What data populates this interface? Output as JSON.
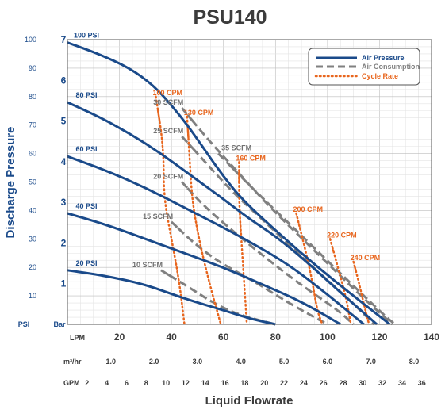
{
  "chart_data": {
    "type": "line",
    "title": "PSU140",
    "xlabel": "Liquid Flowrate",
    "ylabel": "Discharge Pressure",
    "x_unit": "LPM",
    "y_unit_psi": "PSI",
    "y_unit_bar": "Bar",
    "xlim": [
      0,
      140
    ],
    "ylim_psi": [
      0,
      100
    ],
    "ylim_bar": [
      0,
      7
    ],
    "grid": true,
    "legend_position": "top-right",
    "x_ticks": [
      "20",
      "40",
      "60",
      "80",
      "100",
      "120",
      "140"
    ],
    "y_ticks_psi": [
      "100",
      "90",
      "80",
      "70",
      "60",
      "50",
      "40",
      "30",
      "20",
      "10"
    ],
    "y_ticks_bar": [
      "7",
      "6",
      "5",
      "4",
      "3",
      "2",
      "1"
    ],
    "secondary_x_axes": [
      {
        "unit": "m³/hr",
        "ticks": [
          {
            "label": "1.0",
            "lpm": 16.7
          },
          {
            "label": "2.0",
            "lpm": 33.3
          },
          {
            "label": "3.0",
            "lpm": 50.0
          },
          {
            "label": "4.0",
            "lpm": 66.7
          },
          {
            "label": "5.0",
            "lpm": 83.3
          },
          {
            "label": "6.0",
            "lpm": 100.0
          },
          {
            "label": "7.0",
            "lpm": 116.7
          },
          {
            "label": "8.0",
            "lpm": 133.3
          }
        ]
      },
      {
        "unit": "GPM",
        "ticks": [
          {
            "label": "2",
            "lpm": 7.57
          },
          {
            "label": "4",
            "lpm": 15.14
          },
          {
            "label": "6",
            "lpm": 22.71
          },
          {
            "label": "8",
            "lpm": 30.28
          },
          {
            "label": "10",
            "lpm": 37.85
          },
          {
            "label": "12",
            "lpm": 45.42
          },
          {
            "label": "14",
            "lpm": 52.99
          },
          {
            "label": "16",
            "lpm": 60.57
          },
          {
            "label": "18",
            "lpm": 68.14
          },
          {
            "label": "20",
            "lpm": 75.71
          },
          {
            "label": "22",
            "lpm": 83.28
          },
          {
            "label": "24",
            "lpm": 90.85
          },
          {
            "label": "26",
            "lpm": 98.42
          },
          {
            "label": "28",
            "lpm": 105.99
          },
          {
            "label": "30",
            "lpm": 113.56
          },
          {
            "label": "32",
            "lpm": 121.13
          },
          {
            "label": "34",
            "lpm": 128.7
          },
          {
            "label": "36",
            "lpm": 136.27
          }
        ]
      }
    ],
    "legend": [
      {
        "label": "Air Pressure",
        "color": "#1a4a8a",
        "style": "solid"
      },
      {
        "label": "Air Consumption",
        "color": "#808080",
        "style": "dashed"
      },
      {
        "label": "Cycle Rate",
        "color": "#e8661e",
        "style": "dotted"
      }
    ],
    "series": [
      {
        "group": "Air Pressure",
        "name": "100 PSI",
        "points": [
          [
            0,
            99
          ],
          [
            12,
            95
          ],
          [
            24,
            90
          ],
          [
            33,
            84
          ],
          [
            40,
            77
          ],
          [
            47,
            69
          ],
          [
            53,
            61
          ],
          [
            60,
            52
          ],
          [
            67,
            44
          ],
          [
            80,
            33
          ],
          [
            95,
            21
          ],
          [
            110,
            10
          ],
          [
            124,
            0
          ]
        ]
      },
      {
        "group": "Air Pressure",
        "name": "80 PSI",
        "points": [
          [
            0,
            78
          ],
          [
            12,
            73
          ],
          [
            24,
            67
          ],
          [
            36,
            60
          ],
          [
            48,
            52
          ],
          [
            60,
            44
          ],
          [
            70,
            37
          ],
          [
            80,
            31
          ],
          [
            92,
            22
          ],
          [
            104,
            12
          ],
          [
            119,
            0
          ]
        ]
      },
      {
        "group": "Air Pressure",
        "name": "60 PSI",
        "points": [
          [
            0,
            59
          ],
          [
            15,
            54
          ],
          [
            30,
            48
          ],
          [
            45,
            41
          ],
          [
            60,
            34
          ],
          [
            72,
            28
          ],
          [
            85,
            21
          ],
          [
            98,
            12
          ],
          [
            114,
            0
          ]
        ]
      },
      {
        "group": "Air Pressure",
        "name": "40 PSI",
        "points": [
          [
            0,
            39
          ],
          [
            15,
            35
          ],
          [
            30,
            30
          ],
          [
            45,
            25
          ],
          [
            60,
            20
          ],
          [
            75,
            14
          ],
          [
            90,
            8
          ],
          [
            105,
            0
          ]
        ]
      },
      {
        "group": "Air Pressure",
        "name": "20 PSI",
        "points": [
          [
            0,
            19
          ],
          [
            15,
            17
          ],
          [
            30,
            14
          ],
          [
            45,
            9
          ],
          [
            60,
            5
          ],
          [
            70,
            2
          ],
          [
            80,
            0
          ]
        ]
      },
      {
        "group": "Air Consumption",
        "name": "10 SCFM",
        "points": [
          [
            36,
            19
          ],
          [
            45,
            14
          ],
          [
            57,
            7
          ],
          [
            67,
            3
          ],
          [
            80,
            0
          ]
        ]
      },
      {
        "group": "Air Consumption",
        "name": "15 SCFM",
        "points": [
          [
            40,
            36
          ],
          [
            48,
            29
          ],
          [
            58,
            22
          ],
          [
            72,
            15
          ],
          [
            86,
            7
          ],
          [
            100,
            0
          ]
        ]
      },
      {
        "group": "Air Consumption",
        "name": "20 SCFM",
        "points": [
          [
            44,
            50
          ],
          [
            52,
            42
          ],
          [
            62,
            34
          ],
          [
            74,
            25
          ],
          [
            88,
            15
          ],
          [
            104,
            5
          ],
          [
            110,
            0
          ]
        ]
      },
      {
        "group": "Air Consumption",
        "name": "25 SCFM",
        "points": [
          [
            44,
            66
          ],
          [
            54,
            56
          ],
          [
            64,
            46
          ],
          [
            76,
            36
          ],
          [
            92,
            22
          ],
          [
            108,
            9
          ],
          [
            118,
            0
          ]
        ]
      },
      {
        "group": "Air Consumption",
        "name": "30 SCFM",
        "points": [
          [
            44,
            76
          ],
          [
            54,
            65
          ],
          [
            64,
            55
          ],
          [
            78,
            41
          ],
          [
            96,
            25
          ],
          [
            114,
            9
          ],
          [
            125,
            0
          ]
        ]
      },
      {
        "group": "Air Consumption",
        "name": "35 SCFM",
        "points": [
          [
            58,
            60
          ],
          [
            72,
            47
          ],
          [
            88,
            33
          ],
          [
            106,
            17
          ],
          [
            122,
            3
          ],
          [
            126,
            0
          ]
        ]
      },
      {
        "group": "Cycle Rate",
        "name": "100 CPM",
        "points": [
          [
            34,
            80
          ],
          [
            37,
            62
          ],
          [
            37,
            45
          ],
          [
            40,
            30
          ],
          [
            43,
            15
          ],
          [
            45,
            0
          ]
        ]
      },
      {
        "group": "Cycle Rate",
        "name": "130 CPM",
        "points": [
          [
            46,
            73
          ],
          [
            47,
            58
          ],
          [
            48,
            43
          ],
          [
            51,
            28
          ],
          [
            55,
            13
          ],
          [
            59,
            0
          ]
        ]
      },
      {
        "group": "Cycle Rate",
        "name": "160 CPM",
        "points": [
          [
            66,
            57
          ],
          [
            66,
            43
          ],
          [
            67,
            28
          ],
          [
            68,
            14
          ],
          [
            69,
            0
          ]
        ]
      },
      {
        "group": "Cycle Rate",
        "name": "200 CPM",
        "points": [
          [
            88,
            39
          ],
          [
            91,
            28
          ],
          [
            94,
            16
          ],
          [
            96,
            5
          ],
          [
            98,
            0
          ]
        ]
      },
      {
        "group": "Cycle Rate",
        "name": "220 CPM",
        "points": [
          [
            101,
            30
          ],
          [
            104,
            20
          ],
          [
            107,
            10
          ],
          [
            109,
            0
          ]
        ]
      },
      {
        "group": "Cycle Rate",
        "name": "240 CPM",
        "points": [
          [
            110,
            22
          ],
          [
            112,
            15
          ],
          [
            114,
            7
          ],
          [
            116,
            0
          ]
        ]
      }
    ]
  }
}
